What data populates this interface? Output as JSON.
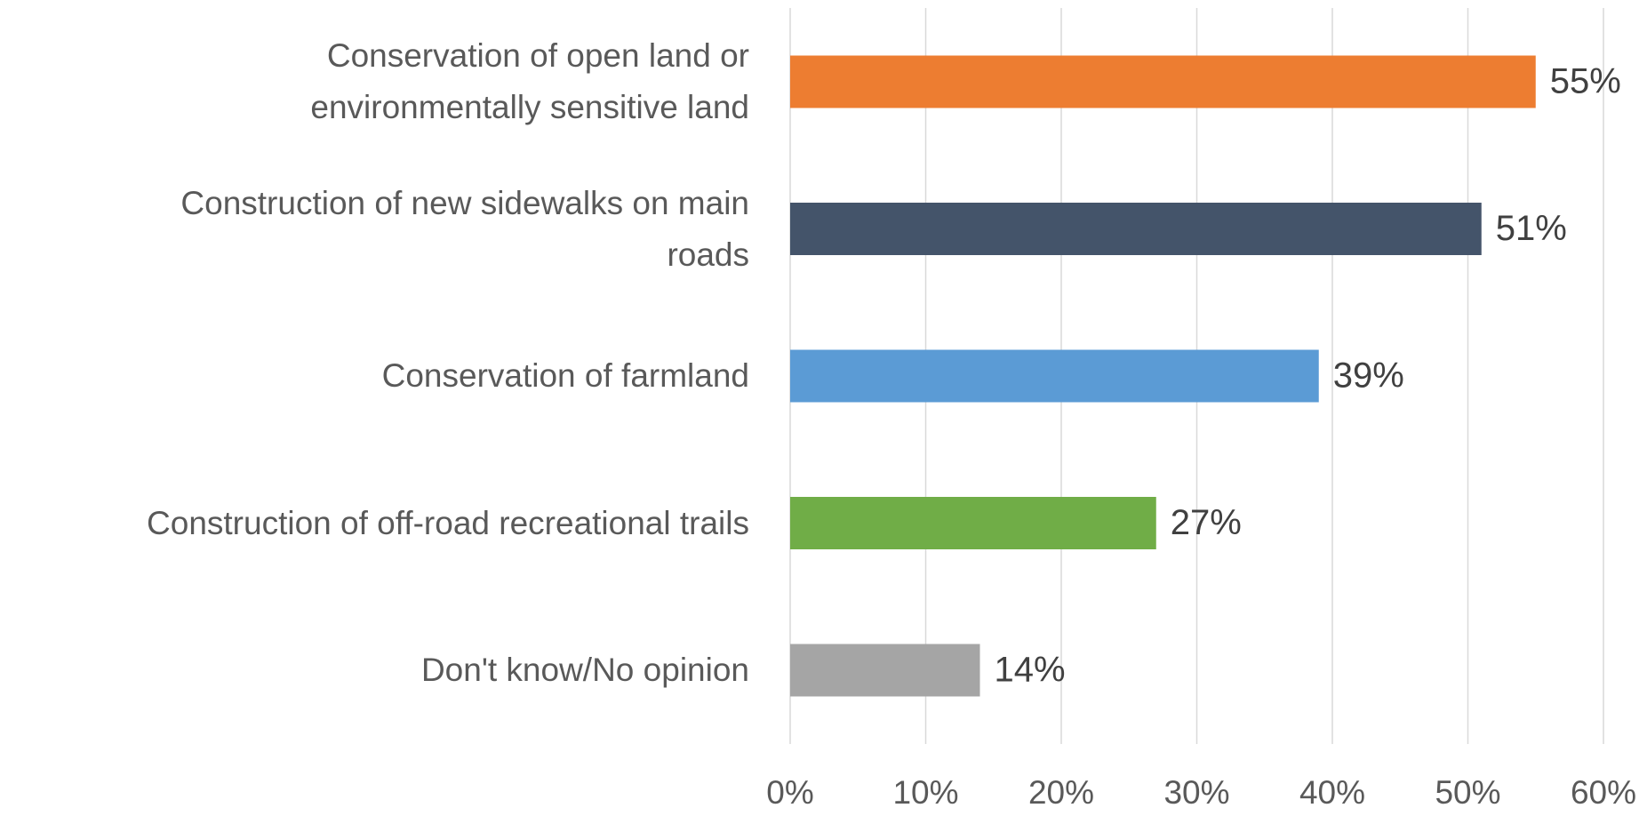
{
  "chart_data": {
    "type": "bar",
    "orientation": "horizontal",
    "categories": [
      "Conservation of open land or\nenvironmentally sensitive land",
      "Construction of new sidewalks on main\nroads",
      "Conservation of farmland",
      "Construction of off-road recreational trails",
      "Don't know/No opinion"
    ],
    "values": [
      55,
      51,
      39,
      27,
      14
    ],
    "value_labels": [
      "55%",
      "51%",
      "39%",
      "27%",
      "14%"
    ],
    "colors": [
      "#ed7d31",
      "#44546a",
      "#5b9bd5",
      "#70ad47",
      "#a5a5a5"
    ],
    "xlim": [
      0,
      60
    ],
    "xticks": [
      {
        "value": 0,
        "label": "0%"
      },
      {
        "value": 10,
        "label": "10%"
      },
      {
        "value": 20,
        "label": "20%"
      },
      {
        "value": 30,
        "label": "30%"
      },
      {
        "value": 40,
        "label": "40%"
      },
      {
        "value": 50,
        "label": "50%"
      },
      {
        "value": 60,
        "label": "60%"
      }
    ],
    "grid": true
  }
}
